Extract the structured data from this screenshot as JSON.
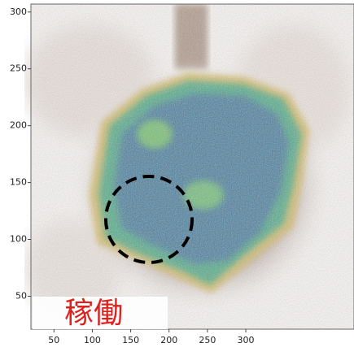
{
  "chart_data": {
    "type": "density",
    "xlim": [
      20,
      441
    ],
    "ylim": [
      21,
      307
    ],
    "xticks": [
      50,
      100,
      150,
      200,
      250,
      300
    ],
    "yticks": [
      50,
      100,
      150,
      200,
      250,
      300
    ],
    "annotation": "稼働"
  }
}
